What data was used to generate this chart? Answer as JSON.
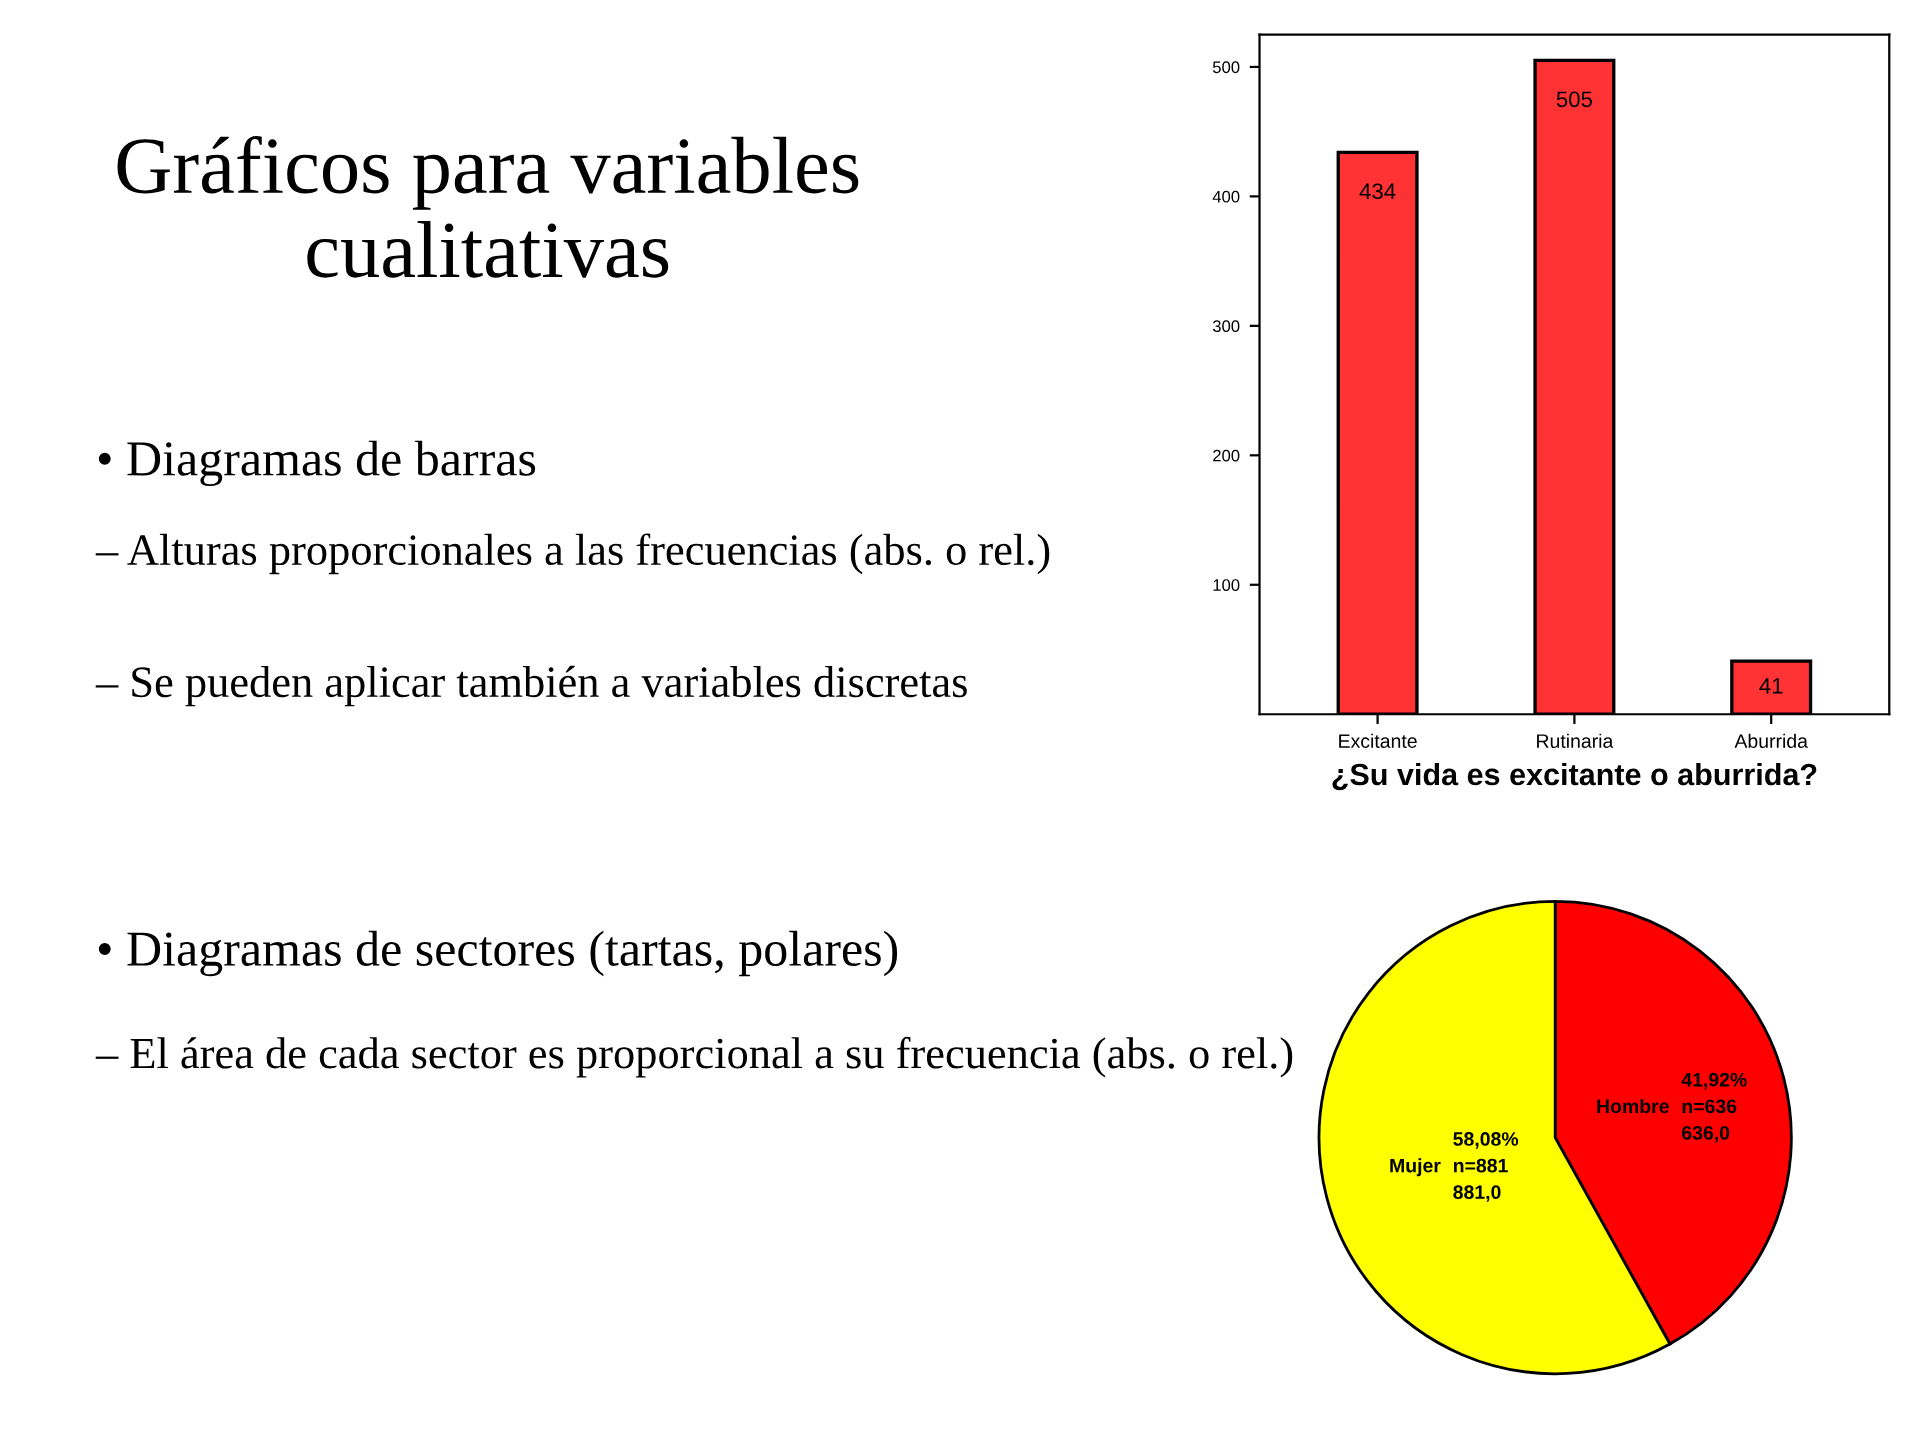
{
  "chart_data": [
    {
      "type": "other",
      "title": "Gráficos para variables cualitativas",
      "annotations": [
        "• Diagramas de barras",
        "– Alturas proporcionales a las frecuencias (abs. o rel.)",
        "– Se pueden aplicar también a variables discretas",
        "• Diagramas de sectores (tartas, polares)",
        "– El área de cada sector es proporcional a su frecuencia (abs. o rel.)"
      ]
    },
    {
      "type": "bar",
      "xlabel": "¿Su vida es excitante o aburrida?",
      "categories": [
        "Excitante",
        "Rutinaria",
        "Aburrida"
      ],
      "values": [
        434,
        505,
        41
      ],
      "color": "#ff3333",
      "ylim": [
        0,
        525
      ],
      "yticks": [
        100,
        200,
        300,
        400,
        500
      ],
      "data_labels": true
    },
    {
      "type": "pie",
      "categories": [
        "Hombre",
        "Mujer"
      ],
      "values": [
        636,
        881
      ],
      "colors": [
        "#ff0000",
        "#ffff00"
      ],
      "value_labels": [
        "41,92%\nn=636\n636,0",
        "58,08%\nn=881\n881,0"
      ]
    }
  ]
}
